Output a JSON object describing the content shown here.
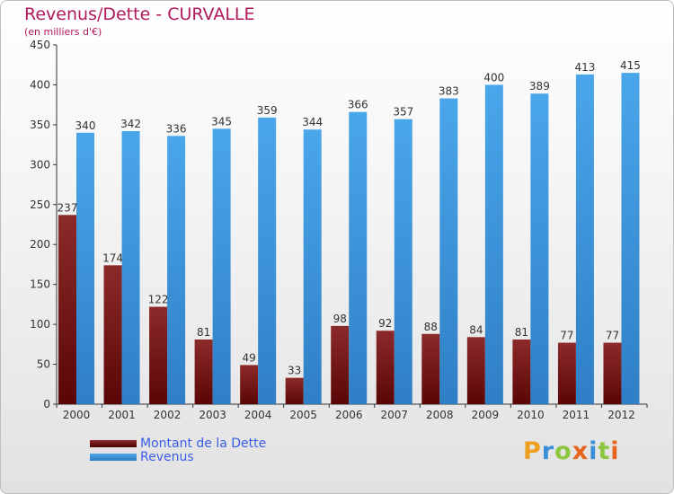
{
  "header": {
    "title": "Revenus/Dette - CURVALLE",
    "subtitle": "(en milliers d'€)"
  },
  "colors": {
    "title": "#b0195b",
    "debt": "#7b1a1a",
    "revenue": "#3f96dc",
    "legend_text": "#3a5de5",
    "axis": "#333333"
  },
  "chart_data": {
    "type": "bar",
    "categories": [
      "2000",
      "2001",
      "2002",
      "2003",
      "2004",
      "2005",
      "2006",
      "2007",
      "2008",
      "2009",
      "2010",
      "2011",
      "2012"
    ],
    "series": [
      {
        "name": "Montant de la Dette",
        "values": [
          237,
          174,
          122,
          81,
          49,
          33,
          98,
          92,
          88,
          84,
          81,
          77,
          77
        ]
      },
      {
        "name": "Revenus",
        "values": [
          340,
          342,
          336,
          345,
          359,
          344,
          366,
          357,
          383,
          400,
          389,
          413,
          415
        ]
      }
    ],
    "ylim": [
      0,
      450
    ],
    "yticks": [
      0,
      50,
      100,
      150,
      200,
      250,
      300,
      350,
      400,
      450
    ],
    "grid": false,
    "legend_position": "bottom-left"
  },
  "legend": {
    "items": [
      {
        "label": "Montant de la Dette"
      },
      {
        "label": "Revenus"
      }
    ]
  },
  "logo": {
    "letters": [
      "P",
      "r",
      "o",
      "x",
      "i",
      "t",
      "i"
    ],
    "letter_colors": [
      "#f0a020",
      "#3a8fd8",
      "#8cc63f",
      "#e8641e",
      "#3a8fd8",
      "#8cc63f",
      "#e8641e"
    ]
  }
}
